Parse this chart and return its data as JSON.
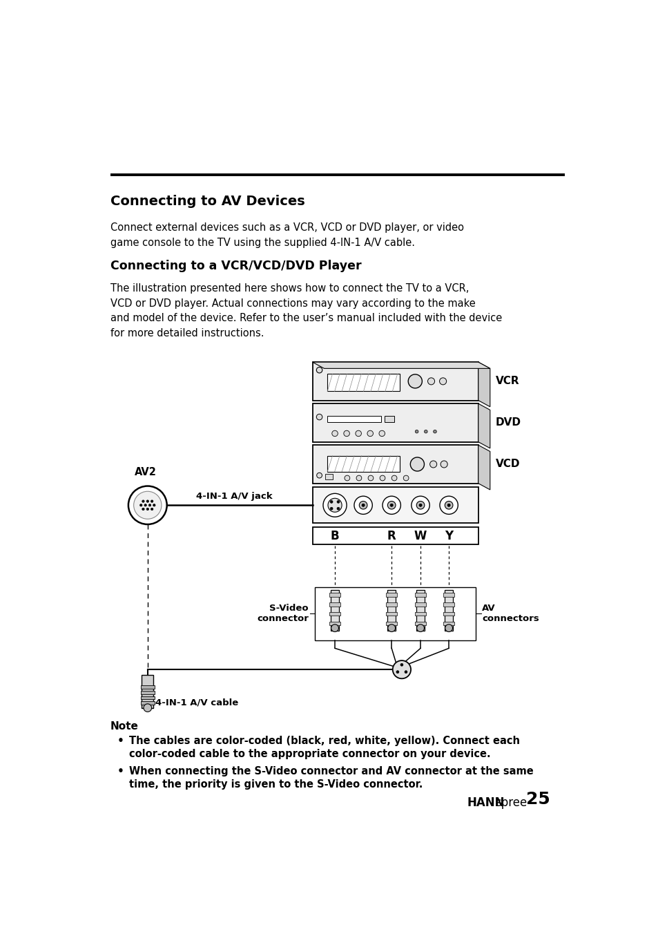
{
  "bg_color": "#ffffff",
  "page_width": 9.54,
  "page_height": 13.52,
  "title1": "Connecting to AV Devices",
  "body1": "Connect external devices such as a VCR, VCD or DVD player, or video\ngame console to the TV using the supplied 4-IN-1 A/V cable.",
  "title2": "Connecting to a VCR/VCD/DVD Player",
  "body2": "The illustration presented here shows how to connect the TV to a VCR,\nVCD or DVD player. Actual connections may vary according to the make\nand model of the device. Refer to the user’s manual included with the device\nfor more detailed instructions.",
  "note_title": "Note",
  "note1": "The cables are color-coded (black, red, white, yellow). Connect each\ncolor-coded cable to the appropriate connector on your device.",
  "note2": "When connecting the S-Video connector and AV connector at the same\ntime, the priority is given to the S-Video connector.",
  "footer_brand_bold": "HANN",
  "footer_brand_normal": "spree",
  "footer_page": "25",
  "label_vcr": "VCR",
  "label_dvd": "DVD",
  "label_vcd": "VCD",
  "label_av2": "AV2",
  "label_jack": "4-IN-1 A/V jack",
  "label_b": "B",
  "label_r": "R",
  "label_w": "W",
  "label_y": "Y",
  "label_svideo": "S-Video\nconnector",
  "label_av_conn": "AV\nconnectors",
  "label_cable": "4-IN-1 A/V cable"
}
